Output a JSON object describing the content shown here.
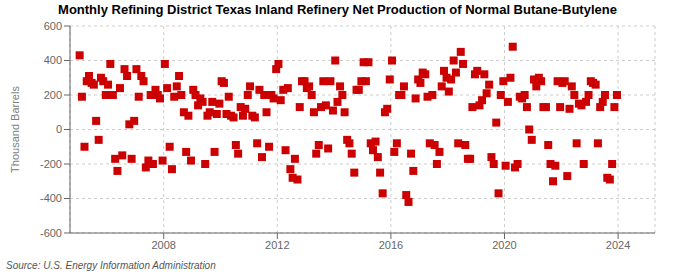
{
  "chart_data": {
    "type": "scatter",
    "title": "Monthly Refining District Texas Inland Refinery Net Production of Normal Butane-Butylene",
    "ylabel": "Thousand Barrels",
    "source": "Source: U.S. Energy Information Administration",
    "color": "#cc0000",
    "marker": "square",
    "grid": true,
    "xlim": [
      2004.7,
      2025.3
    ],
    "xticks": [
      2008,
      2012,
      2016,
      2020,
      2024
    ],
    "ylim": [
      -600,
      600
    ],
    "yticks": [
      -600,
      -400,
      -200,
      0,
      200,
      400,
      600
    ],
    "x": [
      2005.04,
      2005.12,
      2005.21,
      2005.29,
      2005.37,
      2005.46,
      2005.54,
      2005.62,
      2005.71,
      2005.79,
      2005.87,
      2005.96,
      2006.04,
      2006.12,
      2006.21,
      2006.29,
      2006.37,
      2006.46,
      2006.54,
      2006.62,
      2006.71,
      2006.79,
      2006.87,
      2006.96,
      2007.04,
      2007.12,
      2007.21,
      2007.29,
      2007.37,
      2007.46,
      2007.54,
      2007.62,
      2007.71,
      2007.79,
      2007.87,
      2007.96,
      2008.04,
      2008.12,
      2008.21,
      2008.29,
      2008.37,
      2008.46,
      2008.54,
      2008.62,
      2008.71,
      2008.79,
      2008.87,
      2008.96,
      2009.04,
      2009.12,
      2009.21,
      2009.29,
      2009.37,
      2009.46,
      2009.54,
      2009.62,
      2009.71,
      2009.79,
      2009.87,
      2009.96,
      2010.04,
      2010.12,
      2010.21,
      2010.29,
      2010.37,
      2010.46,
      2010.54,
      2010.62,
      2010.71,
      2010.79,
      2010.87,
      2010.96,
      2011.04,
      2011.12,
      2011.21,
      2011.29,
      2011.37,
      2011.46,
      2011.54,
      2011.62,
      2011.71,
      2011.79,
      2011.87,
      2011.96,
      2012.04,
      2012.12,
      2012.21,
      2012.29,
      2012.37,
      2012.46,
      2012.54,
      2012.62,
      2012.71,
      2012.79,
      2012.87,
      2012.96,
      2013.04,
      2013.12,
      2013.21,
      2013.29,
      2013.37,
      2013.46,
      2013.54,
      2013.62,
      2013.71,
      2013.79,
      2013.87,
      2013.96,
      2014.04,
      2014.12,
      2014.21,
      2014.29,
      2014.37,
      2014.46,
      2014.54,
      2014.62,
      2014.71,
      2014.79,
      2014.87,
      2014.96,
      2015.04,
      2015.12,
      2015.21,
      2015.29,
      2015.37,
      2015.46,
      2015.54,
      2015.62,
      2015.71,
      2015.79,
      2015.87,
      2015.96,
      2016.04,
      2016.12,
      2016.21,
      2016.29,
      2016.37,
      2016.46,
      2016.54,
      2016.62,
      2016.71,
      2016.79,
      2016.87,
      2016.96,
      2017.04,
      2017.12,
      2017.21,
      2017.29,
      2017.37,
      2017.46,
      2017.54,
      2017.62,
      2017.71,
      2017.79,
      2017.87,
      2017.96,
      2018.04,
      2018.12,
      2018.21,
      2018.29,
      2018.37,
      2018.46,
      2018.54,
      2018.62,
      2018.71,
      2018.79,
      2018.87,
      2018.96,
      2019.04,
      2019.12,
      2019.21,
      2019.29,
      2019.37,
      2019.46,
      2019.54,
      2019.62,
      2019.71,
      2019.79,
      2019.87,
      2019.96,
      2020.04,
      2020.12,
      2020.21,
      2020.29,
      2020.37,
      2020.46,
      2020.54,
      2020.62,
      2020.71,
      2020.79,
      2020.87,
      2020.96,
      2021.04,
      2021.12,
      2021.21,
      2021.29,
      2021.37,
      2021.46,
      2021.54,
      2021.62,
      2021.71,
      2021.79,
      2021.87,
      2021.96,
      2022.04,
      2022.12,
      2022.21,
      2022.29,
      2022.37,
      2022.46,
      2022.54,
      2022.62,
      2022.71,
      2022.79,
      2022.87,
      2022.96,
      2023.04,
      2023.12,
      2023.21,
      2023.29,
      2023.37,
      2023.46,
      2023.54,
      2023.62,
      2023.71,
      2023.79,
      2023.87,
      2023.96
    ],
    "values": [
      430,
      190,
      -100,
      280,
      310,
      270,
      260,
      50,
      -60,
      300,
      280,
      200,
      260,
      380,
      200,
      -170,
      -240,
      240,
      -150,
      350,
      310,
      30,
      -170,
      50,
      350,
      190,
      310,
      280,
      -220,
      -180,
      200,
      -200,
      230,
      200,
      180,
      -180,
      380,
      240,
      -100,
      -230,
      190,
      250,
      310,
      200,
      100,
      -130,
      80,
      -180,
      230,
      200,
      140,
      180,
      160,
      -200,
      80,
      100,
      160,
      -130,
      90,
      150,
      280,
      270,
      90,
      190,
      80,
      70,
      -90,
      -140,
      130,
      80,
      120,
      200,
      250,
      80,
      70,
      -80,
      230,
      -160,
      200,
      100,
      -100,
      200,
      180,
      350,
      380,
      170,
      230,
      -120,
      240,
      -230,
      -280,
      -170,
      -290,
      130,
      280,
      280,
      240,
      250,
      200,
      100,
      -140,
      -90,
      130,
      280,
      140,
      -110,
      280,
      110,
      400,
      160,
      250,
      200,
      100,
      -60,
      -80,
      -140,
      -250,
      230,
      230,
      280,
      390,
      280,
      390,
      -80,
      -120,
      -70,
      -160,
      -250,
      -370,
      100,
      120,
      290,
      400,
      -130,
      -80,
      200,
      200,
      250,
      -380,
      -420,
      -140,
      -240,
      180,
      290,
      270,
      330,
      320,
      190,
      -80,
      200,
      -90,
      -200,
      -130,
      250,
      340,
      300,
      220,
      290,
      400,
      330,
      -80,
      450,
      380,
      -90,
      -170,
      -170,
      130,
      320,
      340,
      140,
      170,
      320,
      210,
      260,
      -160,
      -200,
      40,
      -370,
      200,
      280,
      -210,
      160,
      300,
      480,
      -220,
      -200,
      190,
      180,
      200,
      130,
      0,
      -60,
      290,
      250,
      300,
      280,
      130,
      130,
      -90,
      -200,
      -300,
      -210,
      280,
      130,
      270,
      280,
      -270,
      120,
      250,
      200,
      -80,
      150,
      140,
      -200,
      160,
      200,
      280,
      270,
      260,
      -80,
      130,
      160,
      200,
      -280,
      -290,
      -200,
      130,
      200
    ]
  }
}
